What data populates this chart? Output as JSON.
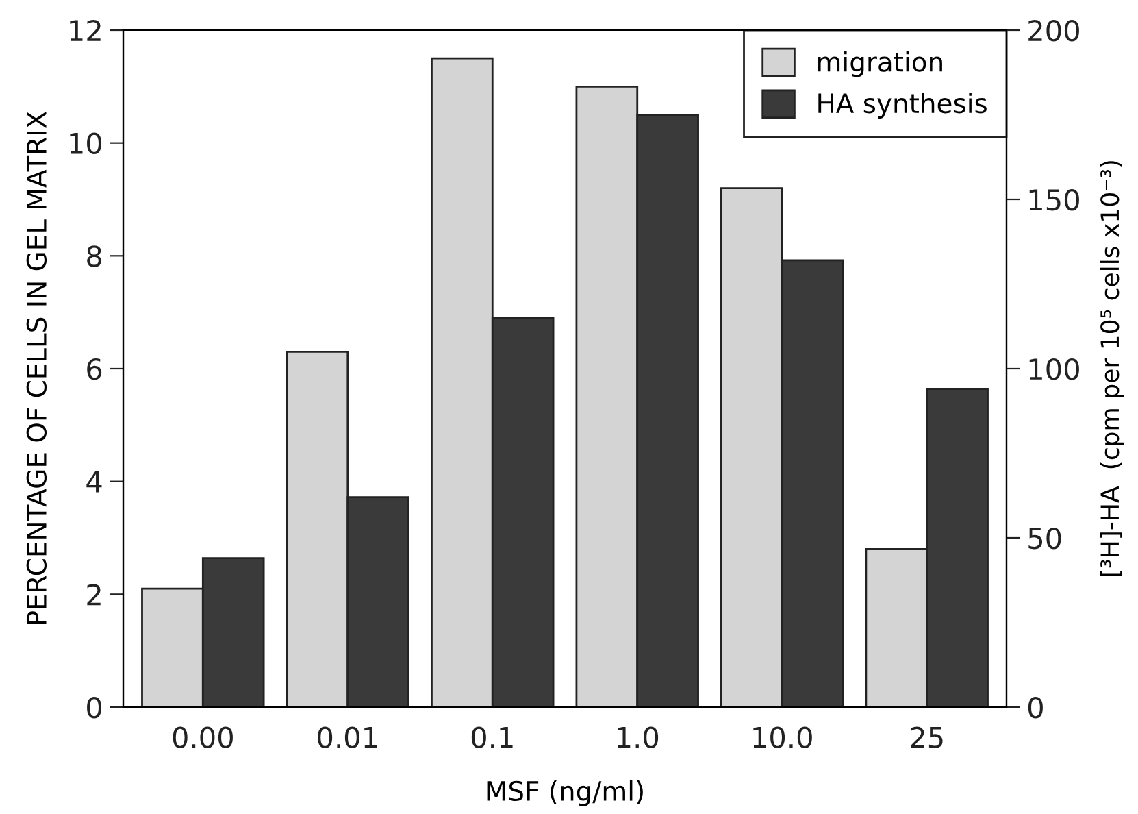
{
  "chart_data": {
    "type": "bar",
    "xlabel": "MSF (ng/ml)",
    "ylabel": "PERCENTAGE OF CELLS IN GEL MATRIX",
    "y2label": "[³H]-HA  (cpm per 10⁵ cells x10⁻³)",
    "categories": [
      "0.00",
      "0.01",
      "0.1",
      "1.0",
      "10.0",
      "25"
    ],
    "series": [
      {
        "name": "migration",
        "color": "#d4d4d4",
        "values": [
          2.1,
          6.3,
          11.5,
          11.0,
          9.2,
          2.8
        ]
      },
      {
        "name": "HA synthesis",
        "color": "#3a3a3a",
        "axis": "y2",
        "values": [
          44,
          62,
          115,
          175,
          132,
          94
        ]
      }
    ],
    "ylim": [
      0,
      12
    ],
    "yticks": [
      0,
      2,
      4,
      6,
      8,
      10,
      12
    ],
    "y2lim": [
      0,
      200
    ],
    "y2ticks": [
      0,
      50,
      100,
      150,
      200
    ],
    "legend": "top right",
    "grid": false
  }
}
